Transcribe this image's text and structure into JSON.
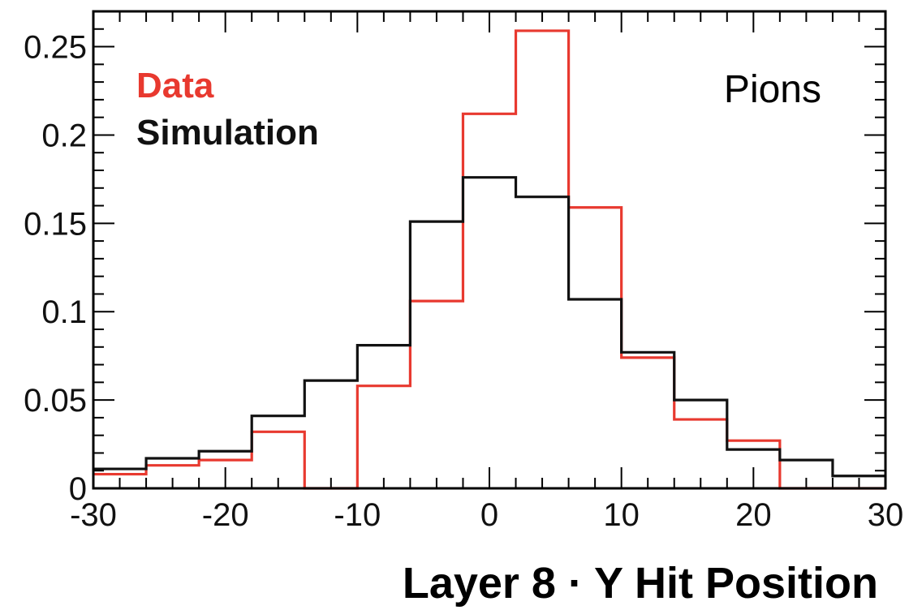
{
  "chart_data": {
    "type": "step",
    "title": "",
    "xlabel": "Layer 8 · Y Hit Position",
    "ylabel": "",
    "xlim": [
      -30,
      30
    ],
    "ylim": [
      0,
      0.27
    ],
    "grid": false,
    "legend_position": "top-left",
    "x_ticks": [
      {
        "value": -30,
        "label": "-30"
      },
      {
        "value": -20,
        "label": "-20"
      },
      {
        "value": -10,
        "label": "-10"
      },
      {
        "value": 0,
        "label": "0"
      },
      {
        "value": 10,
        "label": "10"
      },
      {
        "value": 20,
        "label": "20"
      },
      {
        "value": 30,
        "label": "30"
      }
    ],
    "y_ticks": [
      {
        "value": 0,
        "label": "0"
      },
      {
        "value": 0.05,
        "label": "0.05"
      },
      {
        "value": 0.1,
        "label": "0.1"
      },
      {
        "value": 0.15,
        "label": "0.15"
      },
      {
        "value": 0.2,
        "label": "0.2"
      },
      {
        "value": 0.25,
        "label": "0.25"
      }
    ],
    "bin_edges": [
      -30,
      -26,
      -22,
      -18,
      -14,
      -10,
      -6,
      -2,
      2,
      6,
      10,
      14,
      18,
      22,
      26,
      30
    ],
    "series": [
      {
        "name": "Data",
        "color": "#e8392f",
        "values": [
          0.008,
          0.013,
          0.016,
          0.032,
          0.0,
          0.058,
          0.106,
          0.212,
          0.259,
          0.159,
          0.074,
          0.039,
          0.027,
          0.0,
          0.0
        ]
      },
      {
        "name": "Simulation",
        "color": "#111111",
        "values": [
          0.011,
          0.017,
          0.021,
          0.041,
          0.061,
          0.081,
          0.151,
          0.176,
          0.165,
          0.107,
          0.077,
          0.05,
          0.022,
          0.016,
          0.007
        ]
      }
    ],
    "annotation": "Pions"
  }
}
